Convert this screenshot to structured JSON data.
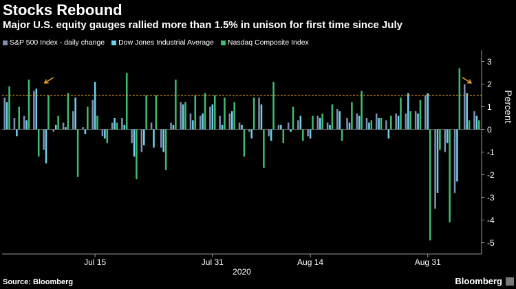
{
  "header": {
    "title": "Stocks Rebound",
    "subtitle": "Major U.S. equity gauges rallied more than 1.5% in unison for first time since July"
  },
  "footer": {
    "source": "Source: Bloomberg",
    "brand": "Bloomberg"
  },
  "colors": {
    "background": "#000000",
    "sp500": "#7e8fb3",
    "dow": "#6fd0ec",
    "nasdaq": "#3dbb6e",
    "threshold": "#f5a623",
    "arrow": "#f5a623"
  },
  "chart_data": {
    "type": "bar",
    "ylabel": "Percent",
    "ylim": [
      -5.5,
      3.5
    ],
    "yticks": [
      3,
      2,
      1,
      0,
      -1,
      -2,
      -3,
      -4,
      -5
    ],
    "xticks": [
      "Jul 15",
      "Jul 31",
      "Aug 14",
      "Aug 31"
    ],
    "xtick_positions": [
      9,
      21,
      31,
      43
    ],
    "year_label": "2020",
    "threshold": 1.5,
    "threshold_style": "dashed",
    "annotations": [
      {
        "type": "arrow",
        "near_index": 3
      },
      {
        "type": "arrow",
        "near_index": 48
      }
    ],
    "categories": [
      "1",
      "2",
      "3",
      "4",
      "5",
      "6",
      "7",
      "8",
      "9",
      "10",
      "11",
      "12",
      "13",
      "14",
      "15",
      "16",
      "17",
      "18",
      "19",
      "20",
      "21",
      "22",
      "23",
      "24",
      "25",
      "26",
      "27",
      "28",
      "29",
      "30",
      "31",
      "32",
      "33",
      "34",
      "35",
      "36",
      "37",
      "38",
      "39",
      "40",
      "41",
      "42",
      "43",
      "44",
      "45",
      "46",
      "47",
      "48",
      "49"
    ],
    "series": [
      {
        "name": "S&P 500 Index - daily change",
        "values": [
          1.4,
          0.5,
          0.6,
          1.7,
          -0.9,
          -0.1,
          0.3,
          0.8,
          0.1,
          1.3,
          -0.3,
          0.3,
          0.5,
          -0.6,
          -1.0,
          0.3,
          -0.8,
          0.3,
          1.2,
          0.7,
          0.6,
          1.0,
          0.6,
          0.7,
          0.3,
          -0.1,
          1.4,
          -0.3,
          0.2,
          0.3,
          0.4,
          -0.3,
          0.6,
          0.3,
          0.9,
          0.5,
          0.7,
          0.5,
          0.7,
          0.4,
          0.7,
          0.7,
          0.8,
          1.5,
          -3.5,
          -1.0,
          -2.8,
          2.0,
          0.8
        ]
      },
      {
        "name": "Dow Jones Industrial Average",
        "values": [
          1.2,
          -0.3,
          0.4,
          1.8,
          -1.5,
          0.2,
          0.1,
          1.4,
          -0.2,
          2.1,
          -0.4,
          0.5,
          0.2,
          -1.2,
          -0.7,
          -0.8,
          -1.0,
          0.2,
          1.1,
          0.4,
          0.7,
          1.1,
          0.2,
          0.8,
          0.2,
          -0.4,
          1.1,
          -0.5,
          0.2,
          -0.1,
          0.6,
          -0.4,
          0.5,
          0.2,
          0.8,
          0.3,
          0.6,
          0.3,
          0.5,
          -0.4,
          0.6,
          1.6,
          0.7,
          1.6,
          -2.8,
          -0.6,
          -2.3,
          1.6,
          0.6
        ]
      },
      {
        "name": "Nasdaq Composite Index",
        "values": [
          1.9,
          1.0,
          2.2,
          -1.2,
          1.5,
          0.6,
          1.6,
          -2.1,
          1.0,
          0.6,
          -0.6,
          0.3,
          2.5,
          -2.2,
          1.5,
          1.5,
          -1.8,
          2.2,
          1.2,
          1.5,
          1.6,
          1.5,
          1.4,
          1.2,
          -1.2,
          1.4,
          -1.7,
          2.1,
          -0.6,
          1.0,
          -0.5,
          0.6,
          0.7,
          1.1,
          -0.5,
          1.2,
          1.7,
          0.4,
          0.5,
          0.6,
          1.4,
          0.8,
          1.3,
          -4.9,
          -0.9,
          -4.1,
          2.7,
          0.4,
          0.4
        ]
      }
    ]
  }
}
